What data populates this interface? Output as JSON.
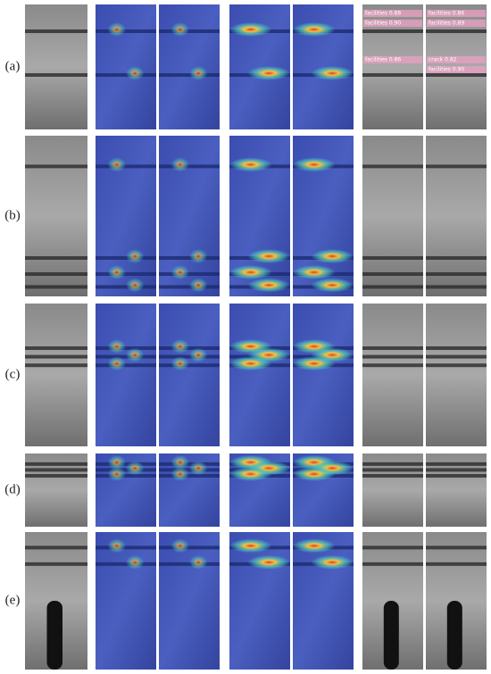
{
  "rows": [
    {
      "label": "(a)",
      "detections": [
        {
          "panel": 6,
          "text": "facilities 0.88"
        },
        {
          "panel": 6,
          "text": "facilities 0.90"
        },
        {
          "panel": 6,
          "text": "facilities 0.86"
        },
        {
          "panel": 7,
          "text": "facilities 0.86"
        },
        {
          "panel": 7,
          "text": "facilities 0.89"
        },
        {
          "panel": 7,
          "text": "crack 0.82"
        },
        {
          "panel": 7,
          "text": "facilities 0.90"
        }
      ]
    },
    {
      "label": "(b)",
      "detections": []
    },
    {
      "label": "(c)",
      "detections": []
    },
    {
      "label": "(d)",
      "detections": []
    },
    {
      "label": "(e)",
      "detections": []
    }
  ]
}
